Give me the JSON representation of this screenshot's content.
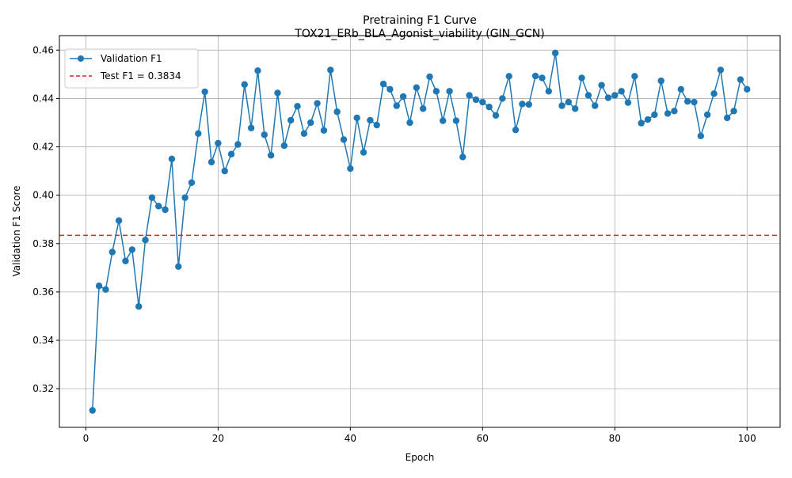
{
  "chart_data": {
    "type": "line",
    "title": "Pretraining F1 Curve",
    "subtitle": "TOX21_ERb_BLA_Agonist_viability (GIN_GCN)",
    "xlabel": "Epoch",
    "ylabel": "Validation F1 Score",
    "xlim": [
      -4,
      105
    ],
    "ylim": [
      0.304,
      0.466
    ],
    "x_ticks": [
      0,
      20,
      40,
      60,
      80,
      100
    ],
    "y_ticks": [
      0.32,
      0.34,
      0.36,
      0.38,
      0.4,
      0.42,
      0.44,
      0.46
    ],
    "grid": true,
    "legend_position": "top-left",
    "series": [
      {
        "name": "Validation F1",
        "color": "#1f77b4",
        "marker": "circle",
        "x": [
          1,
          2,
          3,
          4,
          5,
          6,
          7,
          8,
          9,
          10,
          11,
          12,
          13,
          14,
          15,
          16,
          17,
          18,
          19,
          20,
          21,
          22,
          23,
          24,
          25,
          26,
          27,
          28,
          29,
          30,
          31,
          32,
          33,
          34,
          35,
          36,
          37,
          38,
          39,
          40,
          41,
          42,
          43,
          44,
          45,
          46,
          47,
          48,
          49,
          50,
          51,
          52,
          53,
          54,
          55,
          56,
          57,
          58,
          59,
          60,
          61,
          62,
          63,
          64,
          65,
          66,
          67,
          68,
          69,
          70,
          71,
          72,
          73,
          74,
          75,
          76,
          77,
          78,
          79,
          80,
          81,
          82,
          83,
          84,
          85,
          86,
          87,
          88,
          89,
          90,
          91,
          92,
          93,
          94,
          95,
          96,
          97,
          98,
          99,
          100
        ],
        "y": [
          0.311,
          0.3625,
          0.361,
          0.3765,
          0.3895,
          0.3728,
          0.3775,
          0.354,
          0.3815,
          0.399,
          0.3955,
          0.394,
          0.415,
          0.3705,
          0.399,
          0.4052,
          0.4255,
          0.4428,
          0.4137,
          0.4215,
          0.41,
          0.417,
          0.421,
          0.4458,
          0.4278,
          0.4515,
          0.425,
          0.4165,
          0.4423,
          0.4205,
          0.431,
          0.4368,
          0.4255,
          0.43,
          0.438,
          0.4268,
          0.4518,
          0.4345,
          0.423,
          0.411,
          0.432,
          0.4177,
          0.431,
          0.429,
          0.446,
          0.4438,
          0.437,
          0.4408,
          0.43,
          0.4445,
          0.4358,
          0.449,
          0.443,
          0.4308,
          0.443,
          0.4308,
          0.4158,
          0.4413,
          0.4395,
          0.4385,
          0.4365,
          0.433,
          0.44,
          0.4492,
          0.427,
          0.4377,
          0.4375,
          0.4493,
          0.4485,
          0.443,
          0.4588,
          0.437,
          0.4385,
          0.4358,
          0.4485,
          0.4413,
          0.437,
          0.4455,
          0.4403,
          0.4413,
          0.443,
          0.4383,
          0.4492,
          0.4298,
          0.4313,
          0.4333,
          0.4473,
          0.4338,
          0.4348,
          0.4438,
          0.4388,
          0.4385,
          0.4245,
          0.4333,
          0.442,
          0.4518,
          0.432,
          0.4348,
          0.4478,
          0.4438
        ]
      },
      {
        "name": "Test F1 = 0.3834",
        "color": "#d62728",
        "style": "dashed",
        "value": 0.3834
      }
    ]
  }
}
